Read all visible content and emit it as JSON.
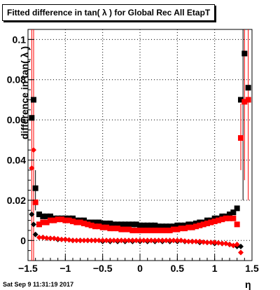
{
  "title": "Fitted difference in tan( λ ) for Global Rec All EtapT",
  "date_stamp": "Sat Sep  9 11:31:19 2017",
  "chart_data": {
    "type": "scatter",
    "title": "Fitted difference in tan( λ ) for Global Rec All EtapT",
    "xlabel": "η",
    "ylabel": "difference in tan( λ )",
    "xlim": [
      -1.5,
      1.5
    ],
    "ylim": [
      -0.01,
      0.105
    ],
    "grid": true,
    "x_ticks": [
      "−1.5",
      "−1",
      "−0.5",
      "0",
      "0.5",
      "1",
      "1.5"
    ],
    "y_ticks": [
      "0",
      "0.02",
      "0.04",
      "0.06",
      "0.08",
      "0.1"
    ],
    "series": [
      {
        "marker": "square",
        "color": "#000000",
        "points": [
          [
            -1.45,
            0.061
          ],
          [
            -1.425,
            0.07
          ],
          [
            -1.4,
            0.026
          ],
          [
            -1.35,
            0.013
          ],
          [
            -1.3,
            0.012
          ],
          [
            -1.25,
            0.012
          ],
          [
            -1.2,
            0.012
          ],
          [
            -1.15,
            0.011
          ],
          [
            -1.1,
            0.011
          ],
          [
            -1.05,
            0.011
          ],
          [
            -1.0,
            0.011
          ],
          [
            -0.95,
            0.011
          ],
          [
            -0.9,
            0.011
          ],
          [
            -0.85,
            0.01
          ],
          [
            -0.8,
            0.01
          ],
          [
            -0.75,
            0.01
          ],
          [
            -0.7,
            0.009
          ],
          [
            -0.65,
            0.009
          ],
          [
            -0.6,
            0.009
          ],
          [
            -0.55,
            0.009
          ],
          [
            -0.5,
            0.0085
          ],
          [
            -0.45,
            0.0085
          ],
          [
            -0.4,
            0.0085
          ],
          [
            -0.35,
            0.008
          ],
          [
            -0.3,
            0.008
          ],
          [
            -0.25,
            0.008
          ],
          [
            -0.2,
            0.008
          ],
          [
            -0.15,
            0.008
          ],
          [
            -0.1,
            0.008
          ],
          [
            -0.05,
            0.008
          ],
          [
            0.0,
            0.0075
          ],
          [
            0.05,
            0.0075
          ],
          [
            0.1,
            0.0075
          ],
          [
            0.15,
            0.0075
          ],
          [
            0.2,
            0.0075
          ],
          [
            0.25,
            0.007
          ],
          [
            0.3,
            0.007
          ],
          [
            0.35,
            0.007
          ],
          [
            0.4,
            0.007
          ],
          [
            0.45,
            0.007
          ],
          [
            0.5,
            0.0075
          ],
          [
            0.55,
            0.0075
          ],
          [
            0.6,
            0.0075
          ],
          [
            0.65,
            0.008
          ],
          [
            0.7,
            0.008
          ],
          [
            0.75,
            0.0085
          ],
          [
            0.8,
            0.009
          ],
          [
            0.85,
            0.009
          ],
          [
            0.9,
            0.01
          ],
          [
            0.95,
            0.01
          ],
          [
            1.0,
            0.011
          ],
          [
            1.05,
            0.011
          ],
          [
            1.1,
            0.012
          ],
          [
            1.15,
            0.012
          ],
          [
            1.2,
            0.013
          ],
          [
            1.25,
            0.014
          ],
          [
            1.3,
            0.016
          ],
          [
            1.35,
            0.07
          ],
          [
            1.4,
            0.093
          ],
          [
            1.45,
            0.076
          ]
        ]
      },
      {
        "marker": "square",
        "color": "#ff0000",
        "points": [
          [
            -1.4,
            0.019
          ],
          [
            -1.35,
            0.008
          ],
          [
            -1.3,
            0.009
          ],
          [
            -1.25,
            0.009
          ],
          [
            -1.2,
            0.01
          ],
          [
            -1.15,
            0.01
          ],
          [
            -1.1,
            0.0105
          ],
          [
            -1.05,
            0.0105
          ],
          [
            -1.0,
            0.01
          ],
          [
            -0.95,
            0.01
          ],
          [
            -0.9,
            0.0095
          ],
          [
            -0.85,
            0.009
          ],
          [
            -0.8,
            0.009
          ],
          [
            -0.75,
            0.0085
          ],
          [
            -0.7,
            0.008
          ],
          [
            -0.65,
            0.0075
          ],
          [
            -0.6,
            0.007
          ],
          [
            -0.55,
            0.007
          ],
          [
            -0.5,
            0.0065
          ],
          [
            -0.45,
            0.0065
          ],
          [
            -0.4,
            0.006
          ],
          [
            -0.35,
            0.006
          ],
          [
            -0.3,
            0.006
          ],
          [
            -0.25,
            0.0055
          ],
          [
            -0.2,
            0.0055
          ],
          [
            -0.15,
            0.0055
          ],
          [
            -0.1,
            0.005
          ],
          [
            -0.05,
            0.005
          ],
          [
            0.0,
            0.005
          ],
          [
            0.05,
            0.005
          ],
          [
            0.1,
            0.005
          ],
          [
            0.15,
            0.005
          ],
          [
            0.2,
            0.005
          ],
          [
            0.25,
            0.005
          ],
          [
            0.3,
            0.005
          ],
          [
            0.35,
            0.005
          ],
          [
            0.4,
            0.005
          ],
          [
            0.45,
            0.0055
          ],
          [
            0.5,
            0.0055
          ],
          [
            0.55,
            0.006
          ],
          [
            0.6,
            0.006
          ],
          [
            0.65,
            0.0065
          ],
          [
            0.7,
            0.0065
          ],
          [
            0.75,
            0.007
          ],
          [
            0.8,
            0.0075
          ],
          [
            0.85,
            0.008
          ],
          [
            0.9,
            0.0085
          ],
          [
            0.95,
            0.009
          ],
          [
            1.0,
            0.0095
          ],
          [
            1.05,
            0.01
          ],
          [
            1.1,
            0.0105
          ],
          [
            1.15,
            0.011
          ],
          [
            1.2,
            0.011
          ],
          [
            1.25,
            0.011
          ],
          [
            1.3,
            0.008
          ],
          [
            1.35,
            0.051
          ],
          [
            1.4,
            0.069
          ],
          [
            1.45,
            0.07
          ]
        ]
      },
      {
        "marker": "diamond",
        "color": "#000000",
        "points": [
          [
            -1.45,
            0.013
          ],
          [
            -1.425,
            0.008
          ],
          [
            -1.4,
            0.003
          ],
          [
            -1.3,
            0.0015
          ],
          [
            -1.2,
            0.001
          ],
          [
            -1.1,
            0.0005
          ],
          [
            -1.0,
            0.0005
          ],
          [
            -0.9,
            0.0
          ],
          [
            -0.8,
            0.0
          ],
          [
            -0.7,
            0.0
          ],
          [
            -0.6,
            0.0
          ],
          [
            -0.5,
            -0.0005
          ],
          [
            -0.4,
            -0.0005
          ],
          [
            -0.3,
            -0.0005
          ],
          [
            -0.2,
            -0.0005
          ],
          [
            -0.1,
            -0.0005
          ],
          [
            0.0,
            -0.0005
          ],
          [
            0.1,
            -0.0005
          ],
          [
            0.2,
            -0.0005
          ],
          [
            0.3,
            -0.0005
          ],
          [
            0.4,
            -0.0005
          ],
          [
            0.5,
            -0.0005
          ],
          [
            0.6,
            -0.0005
          ],
          [
            0.7,
            -0.0005
          ],
          [
            0.8,
            -0.001
          ],
          [
            0.9,
            -0.001
          ],
          [
            1.0,
            -0.0015
          ],
          [
            1.1,
            -0.0015
          ],
          [
            1.2,
            -0.002
          ],
          [
            1.3,
            -0.003
          ],
          [
            1.35,
            -0.003
          ]
        ]
      },
      {
        "marker": "diamond",
        "color": "#ff0000",
        "points": [
          [
            -1.45,
            0.036
          ],
          [
            -1.425,
            0.045
          ],
          [
            -1.35,
            0.0015
          ],
          [
            -1.3,
            0.0015
          ],
          [
            -1.25,
            0.0012
          ],
          [
            -1.2,
            0.001
          ],
          [
            -1.15,
            0.001
          ],
          [
            -1.1,
            0.0008
          ],
          [
            -1.05,
            0.0005
          ],
          [
            -1.0,
            0.0005
          ],
          [
            -0.95,
            0.0003
          ],
          [
            -0.9,
            0.0
          ],
          [
            -0.85,
            0.0
          ],
          [
            -0.8,
            0.0
          ],
          [
            -0.75,
            0.0
          ],
          [
            -0.7,
            0.0
          ],
          [
            -0.65,
            0.0
          ],
          [
            -0.6,
            0.0
          ],
          [
            -0.55,
            0.0
          ],
          [
            -0.5,
            0.0
          ],
          [
            -0.45,
            0.0
          ],
          [
            -0.4,
            0.0
          ],
          [
            -0.35,
            0.0
          ],
          [
            -0.3,
            0.0
          ],
          [
            -0.25,
            0.0
          ],
          [
            -0.2,
            0.0
          ],
          [
            -0.15,
            0.0
          ],
          [
            -0.1,
            0.0
          ],
          [
            -0.05,
            0.0
          ],
          [
            0.0,
            0.0
          ],
          [
            0.05,
            0.0
          ],
          [
            0.1,
            0.0
          ],
          [
            0.15,
            0.0
          ],
          [
            0.2,
            0.0
          ],
          [
            0.25,
            0.0
          ],
          [
            0.3,
            0.0
          ],
          [
            0.35,
            0.0
          ],
          [
            0.4,
            0.0
          ],
          [
            0.45,
            0.0
          ],
          [
            0.5,
            0.0
          ],
          [
            0.55,
            0.0
          ],
          [
            0.6,
            -0.0003
          ],
          [
            0.65,
            -0.0005
          ],
          [
            0.7,
            -0.0005
          ],
          [
            0.75,
            -0.0005
          ],
          [
            0.8,
            -0.0005
          ],
          [
            0.85,
            -0.0008
          ],
          [
            0.9,
            -0.001
          ],
          [
            0.95,
            -0.001
          ],
          [
            1.0,
            -0.001
          ],
          [
            1.05,
            -0.0012
          ],
          [
            1.1,
            -0.0015
          ],
          [
            1.15,
            -0.0015
          ],
          [
            1.2,
            -0.002
          ],
          [
            1.25,
            -0.0025
          ],
          [
            1.3,
            -0.002
          ],
          [
            1.35,
            -0.006
          ]
        ]
      }
    ],
    "error_bars": [
      {
        "color": "#ff0000",
        "x": -1.45,
        "lo": -0.01,
        "hi": 0.105
      },
      {
        "color": "#ff0000",
        "x": -1.425,
        "lo": -0.01,
        "hi": 0.105
      },
      {
        "color": "#000000",
        "x": -1.4,
        "lo": 0.015,
        "hi": 0.035
      },
      {
        "color": "#ff0000",
        "x": 1.35,
        "lo": 0.035,
        "hi": 0.068
      },
      {
        "color": "#000000",
        "x": 1.38,
        "lo": 0.02,
        "hi": 0.105
      },
      {
        "color": "#ff0000",
        "x": 1.4,
        "lo": 0.03,
        "hi": 0.105
      },
      {
        "color": "#ff0000",
        "x": 1.45,
        "lo": 0.02,
        "hi": 0.105
      }
    ]
  }
}
